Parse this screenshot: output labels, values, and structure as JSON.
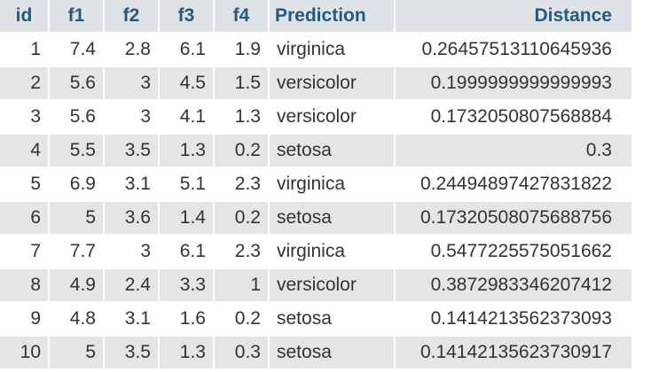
{
  "table": {
    "columns": [
      "id",
      "f1",
      "f2",
      "f3",
      "f4",
      "Prediction",
      "Distance"
    ],
    "rows": [
      [
        "1",
        "7.4",
        "2.8",
        "6.1",
        "1.9",
        "virginica",
        "0.26457513110645936"
      ],
      [
        "2",
        "5.6",
        "3",
        "4.5",
        "1.5",
        "versicolor",
        "0.1999999999999993"
      ],
      [
        "3",
        "5.6",
        "3",
        "4.1",
        "1.3",
        "versicolor",
        "0.1732050807568884"
      ],
      [
        "4",
        "5.5",
        "3.5",
        "1.3",
        "0.2",
        "setosa",
        "0.3"
      ],
      [
        "5",
        "6.9",
        "3.1",
        "5.1",
        "2.3",
        "virginica",
        "0.24494897427831822"
      ],
      [
        "6",
        "5",
        "3.6",
        "1.4",
        "0.2",
        "setosa",
        "0.17320508075688756"
      ],
      [
        "7",
        "7.7",
        "3",
        "6.1",
        "2.3",
        "virginica",
        "0.5477225575051662"
      ],
      [
        "8",
        "4.9",
        "2.4",
        "3.3",
        "1",
        "versicolor",
        "0.3872983346207412"
      ],
      [
        "9",
        "4.8",
        "3.1",
        "1.6",
        "0.2",
        "setosa",
        "0.1414213562373093"
      ],
      [
        "10",
        "5",
        "3.5",
        "1.3",
        "0.3",
        "setosa",
        "0.14142135623730917"
      ]
    ]
  },
  "colors": {
    "header_bg": "#dfe2e6",
    "header_text": "#235a81",
    "row_even_bg": "#e5e5e5",
    "row_odd_bg": "#ffffff",
    "cell_text": "#333333"
  }
}
